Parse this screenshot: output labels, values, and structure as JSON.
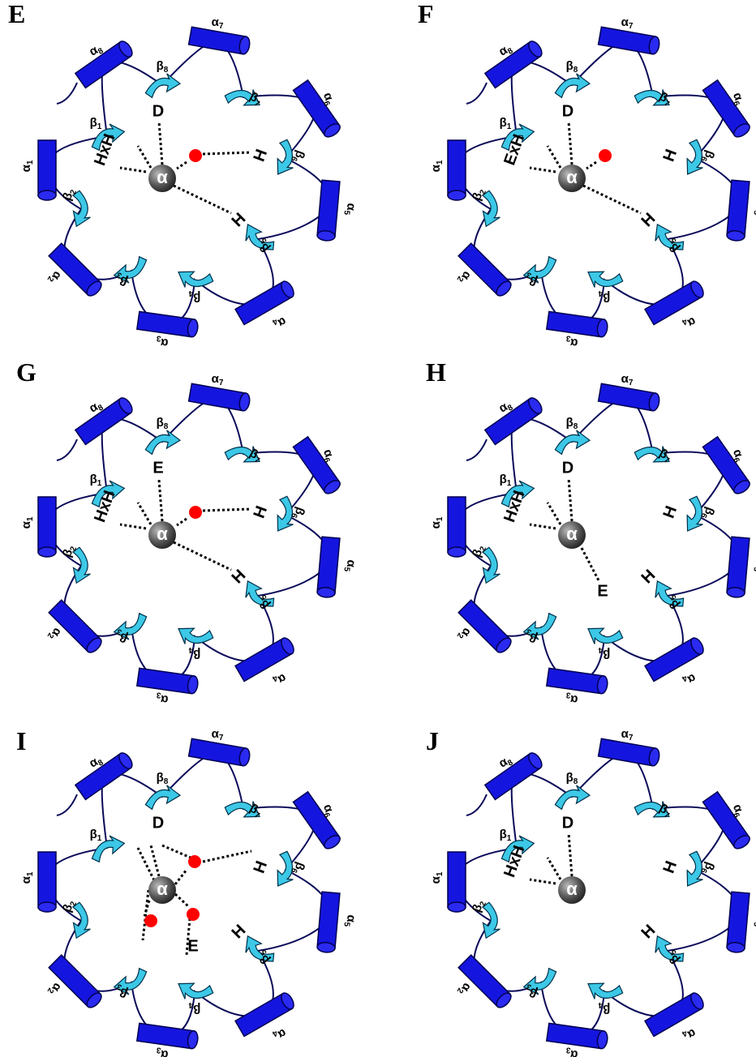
{
  "helices": [
    {
      "symbol": "α",
      "index": "1"
    },
    {
      "symbol": "α",
      "index": "2"
    },
    {
      "symbol": "α",
      "index": "3"
    },
    {
      "symbol": "α",
      "index": "4"
    },
    {
      "symbol": "α",
      "index": "5"
    },
    {
      "symbol": "α",
      "index": "6"
    },
    {
      "symbol": "α",
      "index": "7"
    },
    {
      "symbol": "α",
      "index": "8"
    }
  ],
  "strands": [
    {
      "symbol": "β",
      "index": "1"
    },
    {
      "symbol": "β",
      "index": "2"
    },
    {
      "symbol": "β",
      "index": "3"
    },
    {
      "symbol": "β",
      "index": "4"
    },
    {
      "symbol": "β",
      "index": "5"
    },
    {
      "symbol": "β",
      "index": "6"
    },
    {
      "symbol": "β",
      "index": "7"
    },
    {
      "symbol": "β",
      "index": "8"
    }
  ],
  "panels": [
    {
      "letter": "E",
      "metal": "α",
      "residues": {
        "b1": "HxH",
        "b8": "D",
        "b6": "H",
        "b5": "H"
      }
    },
    {
      "letter": "F",
      "metal": "α",
      "residues": {
        "b1": "ExH",
        "b8": "D",
        "b6": "H",
        "b5": "H"
      }
    },
    {
      "letter": "G",
      "metal": "α",
      "residues": {
        "b1": "HxH",
        "b8": "E",
        "b6": "H",
        "b5": "H"
      }
    },
    {
      "letter": "H",
      "metal": "α",
      "residues": {
        "b1": "HxH",
        "b8": "D",
        "b6": "H",
        "b5": "H",
        "b4": "E"
      }
    },
    {
      "letter": "I",
      "metal": "α",
      "residues": {
        "b8": "D",
        "b6": "H",
        "b5": "H",
        "b4": "E"
      }
    },
    {
      "letter": "J",
      "metal": "α",
      "residues": {
        "b1": "HxH",
        "b8": "D",
        "b6": "H",
        "b5": "H"
      }
    }
  ]
}
